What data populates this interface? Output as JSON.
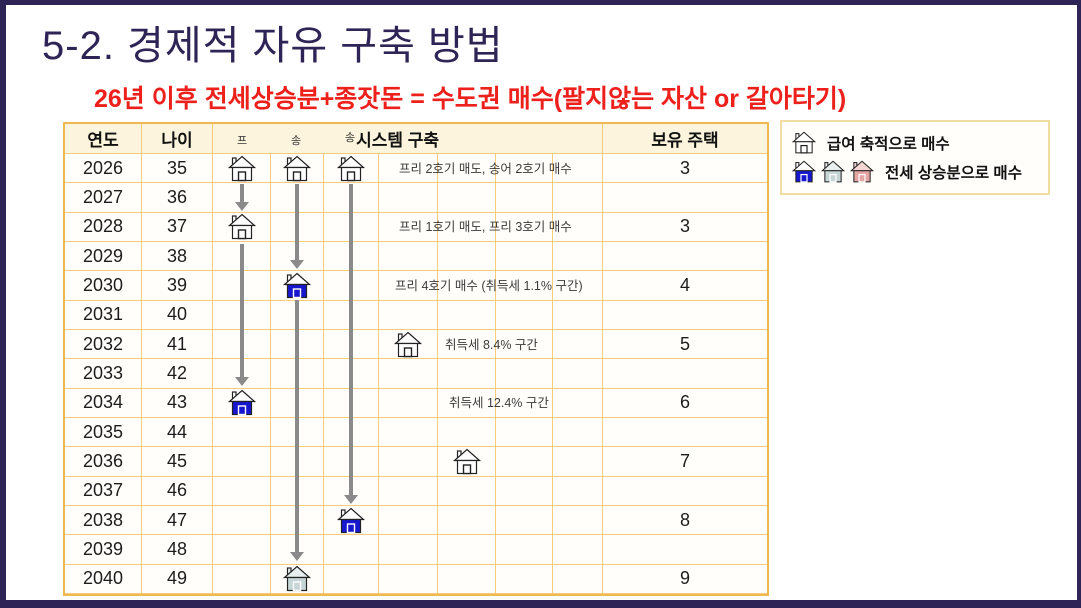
{
  "title": "5-2. 경제적 자유 구축 방법",
  "subtitle": "26년 이후 전세상승분+종잣돈 = 수도권 매수(팔지않는 자산 or 갈아타기)",
  "table": {
    "header": {
      "year": "연도",
      "age": "나이",
      "sub_col_1": "프",
      "sub_col_2": "송",
      "sub_col_3": "송",
      "system": "시스템 구축",
      "owned": "보유 주택"
    },
    "rows": [
      {
        "year": "2026",
        "age": "35",
        "note": "프리 2호기 매도, 송어 2호기 매수",
        "owned": "3"
      },
      {
        "year": "2027",
        "age": "36",
        "note": "",
        "owned": ""
      },
      {
        "year": "2028",
        "age": "37",
        "note": "프리 1호기 매도, 프리 3호기 매수",
        "owned": "3"
      },
      {
        "year": "2029",
        "age": "38",
        "note": "",
        "owned": ""
      },
      {
        "year": "2030",
        "age": "39",
        "note": "프리 4호기 매수 (취득세 1.1% 구간)",
        "owned": "4"
      },
      {
        "year": "2031",
        "age": "40",
        "note": "",
        "owned": ""
      },
      {
        "year": "2032",
        "age": "41",
        "note": "취득세 8.4% 구간",
        "owned": "5"
      },
      {
        "year": "2033",
        "age": "42",
        "note": "",
        "owned": ""
      },
      {
        "year": "2034",
        "age": "43",
        "note": "취득세 12.4% 구간",
        "owned": "6"
      },
      {
        "year": "2035",
        "age": "44",
        "note": "",
        "owned": ""
      },
      {
        "year": "2036",
        "age": "45",
        "note": "",
        "owned": "7"
      },
      {
        "year": "2037",
        "age": "46",
        "note": "",
        "owned": ""
      },
      {
        "year": "2038",
        "age": "47",
        "note": "",
        "owned": "8"
      },
      {
        "year": "2039",
        "age": "48",
        "note": "",
        "owned": ""
      },
      {
        "year": "2040",
        "age": "49",
        "note": "",
        "owned": "9"
      }
    ]
  },
  "legend": {
    "salary_label": "급여 축적으로 매수",
    "jeonse_label": "전세 상승분으로 매수"
  },
  "colors": {
    "slide_border": "#2F2456",
    "title_text": "#2F2456",
    "subtitle_text": "#EE201C",
    "grid_line": "#F6CC78",
    "header_bg": "#FCF4DC",
    "arrow_gray": "#8A8A8A",
    "house_white_body": "#FFFFFF",
    "house_blue_body": "#1717CF",
    "house_gray_body": "#C6D6D6",
    "house_pink_body": "#E6A3A3"
  }
}
